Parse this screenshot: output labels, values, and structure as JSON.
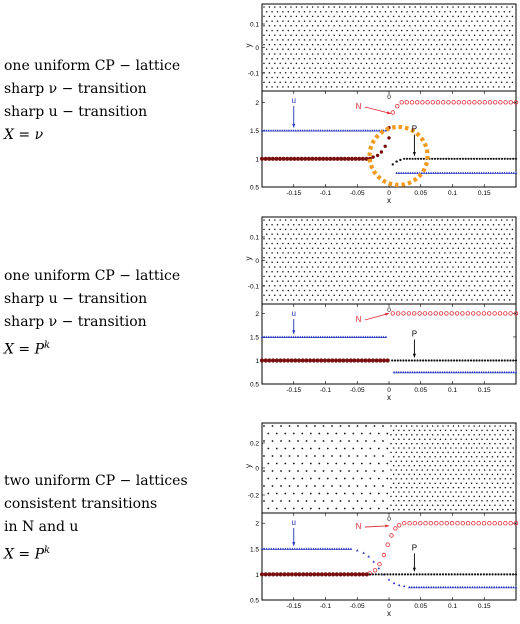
{
  "panels": [
    {
      "caption": [
        "one uniform CP − lattice",
        "sharp ν − transition",
        "sharp u − transition"
      ],
      "formula": "X = ν",
      "lattice": {
        "ylabel": "y",
        "yticks": [
          "0.1",
          "0",
          "-0.1"
        ],
        "type": "uniform"
      },
      "plot": {
        "xlabel": "x",
        "xticks": [
          "-0.15",
          "-0.1",
          "-0.05",
          "0",
          "0.05",
          "0.1",
          "0.15"
        ],
        "yticks": [
          "2",
          "1.5",
          "1",
          "0.5"
        ],
        "annotations": {
          "u": "u",
          "N": "N",
          "P": "P"
        },
        "highlight": "orange-dotted-circle"
      }
    },
    {
      "caption": [
        "one uniform CP − lattice",
        "sharp u − transition",
        "sharp ν − transition"
      ],
      "formula": "X = P^k",
      "lattice": {
        "ylabel": "y",
        "yticks": [
          "0.1",
          "0",
          "-0.1"
        ],
        "type": "uniform"
      },
      "plot": {
        "xlabel": "x",
        "xticks": [
          "-0.15",
          "-0.1",
          "-0.05",
          "0",
          "0.05",
          "0.1",
          "0.15"
        ],
        "yticks": [
          "2",
          "1.5",
          "1",
          "0.5"
        ],
        "annotations": {
          "u": "u",
          "N": "N",
          "P": "P"
        }
      }
    },
    {
      "caption": [
        "two uniform CP − lattices",
        "consistent transitions",
        "in N and u"
      ],
      "formula": "X = P^k",
      "lattice": {
        "ylabel": "y",
        "yticks": [
          "0.2",
          "0",
          "-0.2"
        ],
        "type": "two-lattices"
      },
      "plot": {
        "xlabel": "x",
        "xticks": [
          "-0.15",
          "-0.1",
          "-0.05",
          "0",
          "0.05",
          "0.1",
          "0.15"
        ],
        "yticks": [
          "2",
          "1.5",
          "1",
          "0.5"
        ],
        "annotations": {
          "u": "u",
          "N": "N",
          "P": "P"
        }
      }
    }
  ],
  "colors": {
    "N": "#e0303a",
    "u": "#2233bb",
    "P_left": "#7a0f0f",
    "P_right": "#111111",
    "highlight": "#f29a1e"
  },
  "chart_data": [
    {
      "type": "scatter",
      "xlim": [
        -0.2,
        0.2
      ],
      "ylim": [
        0.5,
        2.2
      ],
      "series": [
        {
          "name": "N",
          "x": [
            0.005,
            0.015,
            0.025,
            0.04,
            0.06,
            0.08,
            0.1,
            0.12,
            0.14,
            0.16,
            0.18,
            0.2
          ],
          "y": [
            1.8,
            1.95,
            2.0,
            2.0,
            2.0,
            2.0,
            2.0,
            2.0,
            2.0,
            2.0,
            2.0,
            2.0
          ]
        },
        {
          "name": "u",
          "x": [
            -0.2,
            -0.1,
            0.0,
            0.005,
            0.1,
            0.2
          ],
          "y": [
            1.5,
            1.5,
            1.5,
            0.75,
            0.75,
            0.75
          ]
        },
        {
          "name": "P",
          "x": [
            -0.2,
            -0.1,
            -0.05,
            -0.02,
            -0.01,
            0.0,
            0.005,
            0.015,
            0.03,
            0.1,
            0.2
          ],
          "y": [
            1.0,
            1.0,
            1.0,
            1.05,
            1.2,
            1.4,
            0.85,
            0.95,
            1.0,
            1.0,
            1.0
          ]
        }
      ]
    },
    {
      "type": "scatter",
      "xlim": [
        -0.2,
        0.2
      ],
      "ylim": [
        0.5,
        2.2
      ],
      "series": [
        {
          "name": "N",
          "x": [
            0.005,
            0.2
          ],
          "y": [
            2.0,
            2.0
          ]
        },
        {
          "name": "u",
          "x": [
            -0.2,
            0.0,
            0.005,
            0.2
          ],
          "y": [
            1.5,
            1.5,
            0.75,
            0.75
          ]
        },
        {
          "name": "P",
          "x": [
            -0.2,
            0.0,
            0.005,
            0.2
          ],
          "y": [
            1.0,
            1.0,
            1.0,
            1.0
          ]
        }
      ]
    },
    {
      "type": "scatter",
      "xlim": [
        -0.2,
        0.2
      ],
      "ylim": [
        0.5,
        2.2
      ],
      "series": [
        {
          "name": "N",
          "x": [
            -0.03,
            -0.02,
            -0.01,
            0.0,
            0.005,
            0.01,
            0.02,
            0.2
          ],
          "y": [
            1.0,
            1.1,
            1.3,
            1.6,
            1.8,
            1.95,
            2.0,
            2.0
          ]
        },
        {
          "name": "u",
          "x": [
            -0.2,
            -0.05,
            -0.03,
            -0.01,
            0.0,
            0.01,
            0.03,
            0.2
          ],
          "y": [
            1.5,
            1.5,
            1.4,
            1.1,
            0.9,
            0.8,
            0.75,
            0.75
          ]
        },
        {
          "name": "P",
          "x": [
            -0.2,
            0.0,
            0.2
          ],
          "y": [
            1.0,
            1.0,
            1.0
          ]
        }
      ]
    }
  ]
}
